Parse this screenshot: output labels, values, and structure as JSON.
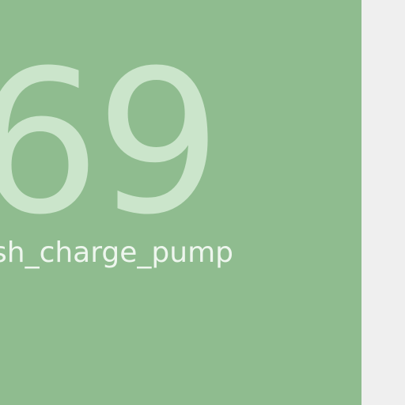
{
  "tile": {
    "value": "69",
    "label": "sh_charge_pump",
    "background_color": "#8fbc8f",
    "value_color": "#cbe5cb",
    "label_color": "#eef6ee"
  },
  "page": {
    "background_color": "#efefef"
  }
}
